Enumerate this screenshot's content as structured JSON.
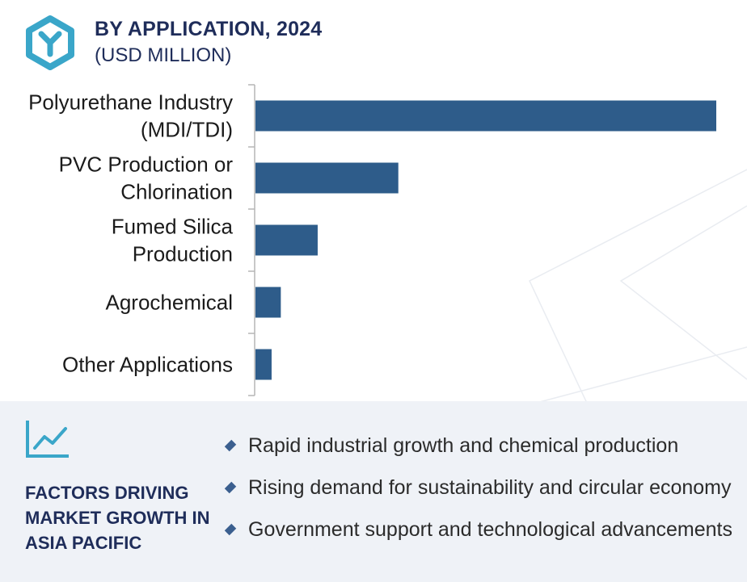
{
  "header": {
    "title": "BY APPLICATION, 2024",
    "subtitle": "(USD MILLION)",
    "logo_icon": "brand-y-hexagon-icon",
    "accent_color": "#3aa6c9"
  },
  "chart_data": {
    "type": "bar",
    "orientation": "horizontal",
    "title": "BY APPLICATION, 2024",
    "subtitle": "(USD MILLION)",
    "categories": [
      [
        "Polyurethane Industry",
        "(MDI/TDI)"
      ],
      [
        "PVC Production or",
        "Chlorination"
      ],
      [
        "Fumed Silica",
        "Production"
      ],
      [
        "Agrochemical"
      ],
      [
        "Other Applications"
      ]
    ],
    "values": [
      100,
      31,
      13.5,
      5.5,
      3.5
    ],
    "xlim": [
      0,
      100
    ],
    "bar_color": "#2e5c8a",
    "grid": false,
    "value_axis_visible": false
  },
  "footer": {
    "icon": "trend-line-chart-icon",
    "title": "FACTORS DRIVING MARKET GROWTH IN ASIA PACIFIC",
    "factors": [
      "Rapid industrial growth and chemical production",
      "Rising demand for sustainability and circular economy",
      "Government support and technological advancements"
    ],
    "background_color": "#eff2f7"
  }
}
